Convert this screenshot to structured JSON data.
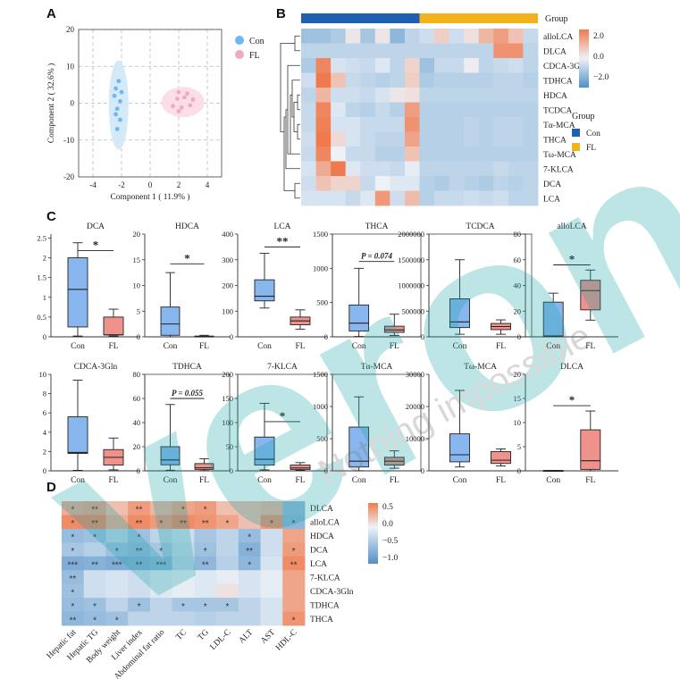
{
  "panel_labels": [
    "A",
    "B",
    "C",
    "D"
  ],
  "colors": {
    "con": "#6fb7f0",
    "fl": "#f2a8c3",
    "box_con": "#87b7ee",
    "box_fl": "#f0928c",
    "group_con": "#1f5fb0",
    "group_fl": "#f2b21b",
    "heat_low": "#4f90c8",
    "heat_mid": "#eef2f7",
    "heat_high": "#f07a4e",
    "sig": "#333333"
  },
  "chart_data": [
    {
      "id": "A",
      "type": "scatter",
      "xlabel": "Component 1 ( 11.9% )",
      "ylabel": "Component 2 ( 32.6% )",
      "xlim": [
        -5,
        5
      ],
      "ylim": [
        -20,
        20
      ],
      "xticks": [
        "-4",
        "-2",
        "0",
        "2",
        "4"
      ],
      "yticks": [
        "20",
        "10",
        "0",
        "-10",
        "-20"
      ],
      "legend": [
        "Con",
        "FL"
      ],
      "series": [
        {
          "name": "Con",
          "points": [
            [
              -2.2,
              6
            ],
            [
              -2.4,
              4
            ],
            [
              -2.0,
              3
            ],
            [
              -2.5,
              2
            ],
            [
              -2.1,
              0.5
            ],
            [
              -2.3,
              -1.5
            ],
            [
              -2.4,
              -3
            ],
            [
              -2.1,
              -4.5
            ],
            [
              -2.3,
              -7
            ]
          ]
        },
        {
          "name": "FL",
          "points": [
            [
              2.0,
              3
            ],
            [
              2.6,
              2.6
            ],
            [
              1.9,
              1.2
            ],
            [
              2.4,
              1.6
            ],
            [
              3.0,
              1.0
            ],
            [
              1.6,
              -0.8
            ],
            [
              2.2,
              -1.2
            ],
            [
              2.8,
              -0.6
            ],
            [
              2.0,
              -2.2
            ]
          ]
        }
      ]
    },
    {
      "id": "B",
      "type": "heatmap",
      "group_title": "Group",
      "group_legend": [
        "Con",
        "FL"
      ],
      "colorbar_ticks": [
        "2.0",
        "0.0",
        "−2.0"
      ],
      "rows": [
        "alloLCA",
        "DLCA",
        "CDCA-3Gln",
        "TDHCA",
        "HDCA",
        "TCDCA",
        "Tα-MCA",
        "THCA",
        "Tω-MCA",
        "7-KLCA",
        "DCA",
        "LCA"
      ],
      "groups": [
        "Con",
        "Con",
        "Con",
        "Con",
        "Con",
        "Con",
        "Con",
        "Con",
        "FL",
        "FL",
        "FL",
        "FL",
        "FL",
        "FL",
        "FL",
        "FL"
      ],
      "values": [
        [
          -1.0,
          -1.0,
          -0.8,
          0.2,
          -0.9,
          0.2,
          -1.2,
          -0.6,
          -0.4,
          0.6,
          -0.4,
          0.3,
          1.0,
          1.4,
          0.8,
          -0.5
        ],
        [
          -0.6,
          -0.6,
          -0.6,
          -0.6,
          -0.6,
          -0.6,
          -0.6,
          -0.6,
          -0.6,
          -0.6,
          -0.6,
          -0.6,
          -0.6,
          1.6,
          1.6,
          -0.6
        ],
        [
          -0.8,
          1.8,
          -0.3,
          -0.4,
          -0.5,
          -0.2,
          -0.6,
          0.5,
          -1.0,
          -0.5,
          -0.5,
          0.1,
          -0.6,
          -0.5,
          -0.4,
          -0.6
        ],
        [
          -0.4,
          2.0,
          0.8,
          -0.5,
          -0.6,
          -0.7,
          -0.6,
          0.6,
          -0.8,
          -0.7,
          -0.7,
          -0.7,
          -0.7,
          -0.6,
          -0.6,
          -0.7
        ],
        [
          -0.6,
          1.0,
          -0.4,
          -0.4,
          -0.5,
          -0.3,
          0.2,
          0.3,
          -0.6,
          -0.6,
          -0.6,
          -0.6,
          -0.6,
          -0.6,
          -0.6,
          -0.6
        ],
        [
          -0.5,
          1.8,
          -0.2,
          -0.6,
          -0.7,
          -0.5,
          -0.7,
          1.4,
          -0.7,
          -0.7,
          -0.7,
          -0.7,
          -0.7,
          -0.7,
          -0.7,
          -0.7
        ],
        [
          -0.5,
          1.9,
          -0.3,
          -0.3,
          -0.5,
          -0.5,
          -0.5,
          1.6,
          -0.7,
          -0.7,
          -0.7,
          -0.6,
          -0.7,
          -0.6,
          -0.6,
          -0.7
        ],
        [
          -0.4,
          2.0,
          0.4,
          -0.3,
          -0.5,
          -0.6,
          -0.6,
          1.3,
          -0.7,
          -0.7,
          -0.7,
          -0.6,
          -0.7,
          -0.6,
          -0.6,
          -0.7
        ],
        [
          -0.5,
          1.8,
          0.0,
          -0.5,
          -0.5,
          -0.7,
          -0.7,
          0.8,
          -0.7,
          -0.7,
          -0.7,
          -0.7,
          -0.7,
          -0.7,
          -0.7,
          -0.7
        ],
        [
          -0.3,
          1.2,
          2.0,
          -0.2,
          -0.4,
          -0.4,
          -0.5,
          -0.1,
          -0.6,
          -0.6,
          -0.6,
          -0.6,
          -0.6,
          -0.5,
          -0.6,
          -0.6
        ],
        [
          -0.4,
          0.8,
          0.5,
          0.5,
          -0.5,
          0.0,
          -0.2,
          -0.2,
          -0.7,
          -0.8,
          -0.6,
          -0.7,
          -0.8,
          -0.6,
          -0.7,
          -0.6
        ],
        [
          -0.3,
          -0.3,
          -0.3,
          -0.5,
          -0.2,
          1.5,
          -0.4,
          0.9,
          -0.7,
          -0.5,
          -0.5,
          -0.4,
          -0.5,
          -0.4,
          -0.6,
          -0.6
        ]
      ]
    },
    {
      "id": "C",
      "type": "box",
      "categories": [
        "Con",
        "FL"
      ],
      "panels": [
        {
          "title": "DCA",
          "yticks": [
            0,
            0.5,
            1,
            1.5,
            2,
            2.5
          ],
          "ylim": [
            0,
            2.6
          ],
          "box": [
            {
              "min": 0.02,
              "q1": 0.25,
              "med": 1.2,
              "q3": 2.0,
              "max": 2.38
            },
            {
              "min": 0.02,
              "q1": 0.05,
              "med": 0.05,
              "q3": 0.5,
              "max": 0.7
            }
          ],
          "sig": "*",
          "sig_y": 2.18
        },
        {
          "title": "HDCA",
          "yticks": [
            0,
            5,
            10,
            15,
            20
          ],
          "ylim": [
            0,
            20
          ],
          "box": [
            {
              "min": 0,
              "q1": 0.3,
              "med": 2.5,
              "q3": 5.8,
              "max": 12.5
            },
            {
              "min": 0,
              "q1": 0,
              "med": 0.05,
              "q3": 0.15,
              "max": 0.3
            }
          ],
          "sig": "*",
          "sig_y": 14.2
        },
        {
          "title": "LCA",
          "yticks": [
            0,
            100,
            200,
            300,
            400
          ],
          "ylim": [
            0,
            400
          ],
          "box": [
            {
              "min": 112,
              "q1": 140,
              "med": 158,
              "q3": 222,
              "max": 325
            },
            {
              "min": 30,
              "q1": 47,
              "med": 62,
              "q3": 77,
              "max": 105
            }
          ],
          "sig": "**",
          "sig_y": 350
        },
        {
          "title": "THCA",
          "yticks": [
            0,
            500,
            1000,
            1500
          ],
          "ylim": [
            0,
            1500
          ],
          "box": [
            {
              "min": 5,
              "q1": 85,
              "med": 200,
              "q3": 465,
              "max": 1000
            },
            {
              "min": 20,
              "q1": 65,
              "med": 100,
              "q3": 155,
              "max": 330
            }
          ],
          "sig": "P = 0.074",
          "sig_y": 1100,
          "framed": true
        },
        {
          "title": "TCDCA",
          "yticks": [
            0,
            500000,
            1000000,
            1500000,
            2000000
          ],
          "ylim": [
            0,
            2000000
          ],
          "box": [
            {
              "min": 50000,
              "q1": 180000,
              "med": 290000,
              "q3": 740000,
              "max": 1500000
            },
            {
              "min": 50000,
              "q1": 140000,
              "med": 200000,
              "q3": 260000,
              "max": 330000
            }
          ],
          "sig": "",
          "sig_y": 0,
          "framed": true
        },
        {
          "title": "alloLCA",
          "yticks": [
            0,
            20,
            40,
            60,
            80
          ],
          "ylim": [
            0,
            80
          ],
          "box": [
            {
              "min": 0,
              "q1": 0.5,
              "med": 0.7,
              "q3": 27,
              "max": 34
            },
            {
              "min": 13,
              "q1": 21,
              "med": 36,
              "q3": 44,
              "max": 52
            }
          ],
          "sig": "*",
          "sig_y": 56
        },
        {
          "title": "CDCA-3Gln",
          "yticks": [
            0,
            2,
            4,
            6,
            8,
            10
          ],
          "ylim": [
            0,
            10
          ],
          "box": [
            {
              "min": 0.05,
              "q1": 1.8,
              "med": 1.9,
              "q3": 5.6,
              "max": 9.4
            },
            {
              "min": 0.1,
              "q1": 0.6,
              "med": 1.4,
              "q3": 2.2,
              "max": 3.4
            }
          ],
          "sig": "",
          "sig_y": 0
        },
        {
          "title": "TDHCA",
          "yticks": [
            0,
            20,
            40,
            60,
            80
          ],
          "ylim": [
            0,
            80
          ],
          "box": [
            {
              "min": 0.5,
              "q1": 5,
              "med": 9,
              "q3": 20,
              "max": 55
            },
            {
              "min": 0.2,
              "q1": 1.2,
              "med": 2.5,
              "q3": 6,
              "max": 10
            }
          ],
          "sig": "P = 0.055",
          "sig_y": 60,
          "framed": true
        },
        {
          "title": "7-KLCA",
          "yticks": [
            0,
            50,
            100,
            150,
            200
          ],
          "ylim": [
            0,
            200
          ],
          "box": [
            {
              "min": 2,
              "q1": 12,
              "med": 24,
              "q3": 70,
              "max": 140
            },
            {
              "min": 1,
              "q1": 3,
              "med": 6,
              "q3": 12,
              "max": 17
            }
          ],
          "sig": "*",
          "sig_y": 102,
          "framed": true
        },
        {
          "title": "Tα-MCA",
          "yticks": [
            0,
            500,
            1000,
            1500
          ],
          "ylim": [
            0,
            1500
          ],
          "box": [
            {
              "min": 2,
              "q1": 60,
              "med": 150,
              "q3": 680,
              "max": 1150
            },
            {
              "min": 40,
              "q1": 90,
              "med": 150,
              "q3": 210,
              "max": 310
            }
          ],
          "sig": "",
          "sig_y": 0,
          "framed": true
        },
        {
          "title": "Tω-MCA",
          "yticks": [
            0,
            10000,
            20000,
            30000
          ],
          "ylim": [
            0,
            30000
          ],
          "box": [
            {
              "min": 1200,
              "q1": 2800,
              "med": 5000,
              "q3": 11500,
              "max": 25000
            },
            {
              "min": 1500,
              "q1": 2300,
              "med": 3300,
              "q3": 6000,
              "max": 6800
            }
          ],
          "sig": "",
          "sig_y": 0
        },
        {
          "title": "DLCA",
          "yticks": [
            0,
            5,
            10,
            15,
            20
          ],
          "ylim": [
            0,
            20
          ],
          "box": [
            {
              "min": 0,
              "q1": 0,
              "med": 0.02,
              "q3": 0.08,
              "max": 0.1
            },
            {
              "min": 0,
              "q1": 0.3,
              "med": 2.1,
              "q3": 8.5,
              "max": 12.4
            }
          ],
          "sig": "*",
          "sig_y": 13.5
        }
      ]
    },
    {
      "id": "D",
      "type": "heatmap",
      "cols": [
        "Hepatic fat",
        "Hepatic TG",
        "Body weight",
        "Liver index",
        "Abdominal fat ratio",
        "TC",
        "TG",
        "LDL-C",
        "ALT",
        "AST",
        "HDL-C"
      ],
      "rows": [
        "DLCA",
        "alloLCA",
        "HDCA",
        "DCA",
        "LCA",
        "7-KLCA",
        "CDCA-3Gln",
        "TDHCA",
        "THCA"
      ],
      "colorbar_ticks": [
        "0.5",
        "0.0",
        "−0.5",
        "−1.0"
      ],
      "values": [
        [
          0.4,
          0.45,
          0.3,
          0.5,
          0.35,
          0.45,
          0.5,
          0.3,
          0.3,
          0.35,
          -0.55
        ],
        [
          0.6,
          0.6,
          0.4,
          0.6,
          0.5,
          0.6,
          0.55,
          0.45,
          0.3,
          0.55,
          -0.6
        ],
        [
          -0.55,
          -0.5,
          -0.3,
          -0.5,
          -0.3,
          -0.2,
          -0.45,
          -0.3,
          -0.55,
          -0.2,
          0.45
        ],
        [
          -0.45,
          -0.35,
          -0.5,
          -0.55,
          -0.45,
          -0.25,
          -0.5,
          -0.3,
          -0.65,
          -0.2,
          0.5
        ],
        [
          -0.7,
          -0.65,
          -0.7,
          -0.65,
          -0.6,
          -0.3,
          -0.6,
          -0.35,
          -0.6,
          -0.15,
          0.6
        ],
        [
          -0.55,
          -0.2,
          -0.15,
          -0.2,
          -0.1,
          -0.05,
          -0.1,
          -0.05,
          -0.15,
          -0.05,
          0.45
        ],
        [
          -0.5,
          -0.2,
          -0.15,
          -0.2,
          -0.1,
          -0.05,
          -0.1,
          0.1,
          -0.15,
          -0.05,
          0.45
        ],
        [
          -0.55,
          -0.5,
          -0.3,
          -0.5,
          -0.3,
          -0.45,
          -0.45,
          -0.45,
          -0.3,
          -0.15,
          0.45
        ],
        [
          -0.6,
          -0.55,
          -0.5,
          -0.3,
          -0.3,
          -0.3,
          -0.35,
          -0.3,
          -0.3,
          -0.15,
          0.55
        ]
      ],
      "sig": [
        [
          "*",
          "**",
          "",
          "**",
          "",
          "*",
          "*",
          "",
          "",
          "",
          ""
        ],
        [
          "*",
          "**",
          "",
          "**",
          "*",
          "**",
          "**",
          "*",
          "",
          "*",
          "*"
        ],
        [
          "*",
          "*",
          "",
          "*",
          "",
          "",
          "",
          "",
          "*",
          "",
          ""
        ],
        [
          "*",
          "",
          "*",
          "**",
          "*",
          "",
          "*",
          "",
          "**",
          "",
          "*"
        ],
        [
          "***",
          "**",
          "***",
          "**",
          "***",
          "",
          "**",
          "",
          "*",
          "",
          "**"
        ],
        [
          "**",
          "",
          "",
          "",
          "",
          "",
          "",
          "",
          "",
          "",
          ""
        ],
        [
          "*",
          "",
          "",
          "",
          "",
          "",
          "",
          "",
          "",
          "",
          ""
        ],
        [
          "*",
          "*",
          "",
          "*",
          "",
          "*",
          "*",
          "*",
          "",
          "",
          ""
        ],
        [
          "**",
          "*",
          "*",
          "",
          "",
          "",
          "",
          "",
          "",
          "",
          "*"
        ]
      ]
    }
  ],
  "watermark": {
    "word": "veron",
    "slogan": "Nothing impossible"
  }
}
